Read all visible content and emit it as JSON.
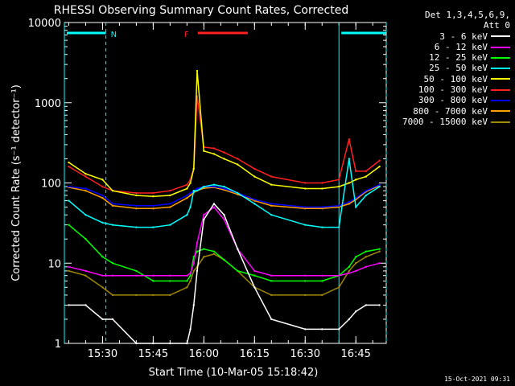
{
  "chart_data": {
    "type": "line",
    "title": "RHESSI Observing Summary Count Rates, Corrected",
    "xlabel": "Start Time (10-Mar-05 15:18:42)",
    "ylabel": "Corrected Count Rate (s⁻¹ detector⁻¹)",
    "yscale": "log",
    "ylim": [
      1,
      10000
    ],
    "xlim": [
      "15:18:42",
      "16:54:00"
    ],
    "x_ticks": [
      "15:30",
      "15:45",
      "16:00",
      "16:15",
      "16:30",
      "16:45"
    ],
    "y_ticks": [
      "1",
      "10",
      "100",
      "1000",
      "10000"
    ],
    "legend_header": [
      "Det 1,3,4,5,6,9,",
      "Att 0"
    ],
    "legend_placement": "right",
    "annotations": [
      {
        "label": "N",
        "start": "15:18:42",
        "end": "15:31:00",
        "color": "#00ffff"
      },
      {
        "label": "F",
        "start": "15:57:30",
        "end": "16:13:00",
        "color": "#ff2020"
      },
      {
        "label": "",
        "start": "16:40:00",
        "end": "16:54:00",
        "color": "#00ffff"
      }
    ],
    "x": [
      "15:20",
      "15:25",
      "15:30",
      "15:33",
      "15:40",
      "15:45",
      "15:50",
      "15:55",
      "15:56",
      "15:57",
      "15:58",
      "16:00",
      "16:03",
      "16:06",
      "16:10",
      "16:15",
      "16:20",
      "16:30",
      "16:35",
      "16:40",
      "16:43",
      "16:45",
      "16:48",
      "16:52"
    ],
    "series": [
      {
        "name": "3 - 6 keV",
        "color": "#ffffff",
        "values": [
          3,
          3,
          2,
          2,
          1,
          1,
          1,
          1,
          1.5,
          3,
          8,
          35,
          55,
          40,
          15,
          5,
          2,
          1.5,
          1.5,
          1.5,
          2,
          2.5,
          3,
          3
        ]
      },
      {
        "name": "6 - 12 keV",
        "color": "#ff00ff",
        "values": [
          9,
          8,
          7,
          7,
          7,
          7,
          7,
          7,
          7.5,
          10,
          18,
          40,
          50,
          35,
          15,
          8,
          7,
          7,
          7,
          7,
          7.5,
          8,
          9,
          10
        ]
      },
      {
        "name": "12 - 25 keV",
        "color": "#00ff00",
        "values": [
          30,
          20,
          12,
          10,
          8,
          6,
          6,
          6,
          7,
          12,
          14,
          15,
          14,
          11,
          8,
          7,
          6,
          6,
          6,
          7,
          9,
          12,
          14,
          15
        ]
      },
      {
        "name": "25 - 50 keV",
        "color": "#00ffff",
        "values": [
          60,
          40,
          32,
          30,
          28,
          28,
          30,
          40,
          50,
          80,
          80,
          90,
          95,
          90,
          75,
          55,
          40,
          30,
          28,
          28,
          200,
          50,
          70,
          90
        ]
      },
      {
        "name": "50 - 100 keV",
        "color": "#ffff00",
        "values": [
          180,
          130,
          110,
          80,
          70,
          68,
          70,
          85,
          100,
          150,
          2500,
          250,
          230,
          200,
          170,
          120,
          95,
          85,
          85,
          90,
          100,
          110,
          120,
          160
        ]
      },
      {
        "name": "100 - 300 keV",
        "color": "#ff2020",
        "values": [
          160,
          120,
          90,
          80,
          75,
          75,
          80,
          95,
          110,
          150,
          1200,
          280,
          270,
          240,
          200,
          150,
          120,
          100,
          100,
          110,
          350,
          140,
          140,
          190
        ]
      },
      {
        "name": "300 - 800 keV",
        "color": "#0000ff",
        "values": [
          90,
          85,
          70,
          55,
          52,
          52,
          55,
          70,
          75,
          80,
          85,
          90,
          90,
          85,
          75,
          62,
          55,
          50,
          50,
          52,
          58,
          65,
          80,
          95
        ]
      },
      {
        "name": "800 - 7000 keV",
        "color": "#ffa000",
        "values": [
          88,
          80,
          65,
          52,
          48,
          48,
          50,
          65,
          70,
          76,
          80,
          86,
          88,
          82,
          72,
          60,
          52,
          48,
          48,
          50,
          55,
          62,
          78,
          92
        ]
      },
      {
        "name": "7000 - 15000 keV",
        "color": "#a08800",
        "values": [
          8,
          7,
          5,
          4,
          4,
          4,
          4,
          5,
          6,
          8,
          9,
          12,
          13,
          11,
          8,
          5,
          4,
          4,
          4,
          5,
          8,
          10,
          12,
          14
        ]
      }
    ],
    "grid": false
  },
  "footer": "15-Oct-2021 09:31"
}
